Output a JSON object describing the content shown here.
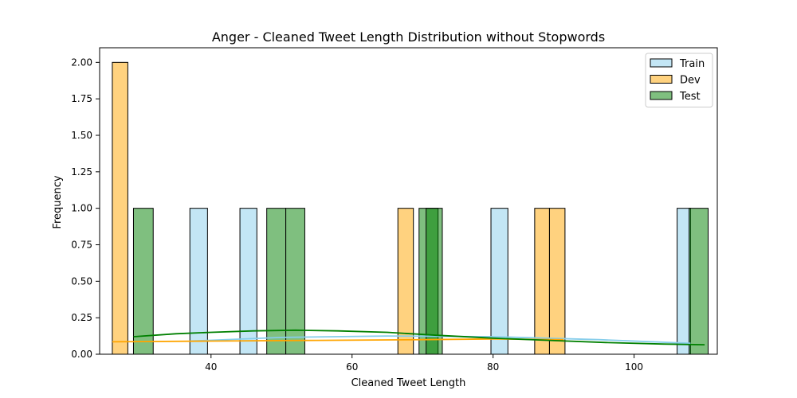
{
  "chart_data": {
    "type": "bar",
    "title": "Anger - Cleaned Tweet Length Distribution without Stopwords",
    "xlabel": "Cleaned Tweet Length",
    "ylabel": "Frequency",
    "xlim": [
      24.2,
      111.8
    ],
    "ylim": [
      0,
      2.1
    ],
    "xticks": [
      40,
      60,
      80,
      100
    ],
    "yticks": [
      0.0,
      0.25,
      0.5,
      0.75,
      1.0,
      1.25,
      1.5,
      1.75,
      2.0
    ],
    "ytick_labels": [
      "0.00",
      "0.25",
      "0.50",
      "0.75",
      "1.00",
      "1.25",
      "1.50",
      "1.75",
      "2.00"
    ],
    "legend_position": "top-right",
    "series": [
      {
        "name": "Train",
        "fill": "#87ceeb",
        "fill_opacity": 0.5,
        "line": "#87ceeb",
        "bars": [
          {
            "x0": 37.0,
            "x1": 39.5,
            "count": 1
          },
          {
            "x0": 44.1,
            "x1": 46.5,
            "count": 1
          },
          {
            "x0": 79.7,
            "x1": 82.1,
            "count": 1
          },
          {
            "x0": 106.1,
            "x1": 108.0,
            "count": 1
          }
        ],
        "kde": [
          [
            37,
            0.09
          ],
          [
            50,
            0.115
          ],
          [
            65,
            0.125
          ],
          [
            80,
            0.12
          ],
          [
            95,
            0.1
          ],
          [
            108,
            0.075
          ]
        ]
      },
      {
        "name": "Dev",
        "fill": "#ffa500",
        "fill_opacity": 0.5,
        "line": "#ffa500",
        "bars": [
          {
            "x0": 26.0,
            "x1": 28.2,
            "count": 2
          },
          {
            "x0": 66.5,
            "x1": 68.7,
            "count": 1
          },
          {
            "x0": 85.9,
            "x1": 88.0,
            "count": 1
          },
          {
            "x0": 88.0,
            "x1": 90.2,
            "count": 1
          }
        ],
        "kde": [
          [
            26,
            0.085
          ],
          [
            40,
            0.09
          ],
          [
            55,
            0.095
          ],
          [
            70,
            0.1
          ],
          [
            80,
            0.105
          ],
          [
            90,
            0.1
          ]
        ]
      },
      {
        "name": "Test",
        "fill": "#008000",
        "fill_opacity": 0.5,
        "line": "#008000",
        "bars": [
          {
            "x0": 29.0,
            "x1": 31.8,
            "count": 1
          },
          {
            "x0": 47.9,
            "x1": 50.6,
            "count": 1
          },
          {
            "x0": 50.6,
            "x1": 53.3,
            "count": 1
          },
          {
            "x0": 69.5,
            "x1": 72.2,
            "count": 1
          },
          {
            "x0": 70.5,
            "x1": 72.8,
            "count": 1
          },
          {
            "x0": 107.8,
            "x1": 110.5,
            "count": 1
          }
        ],
        "kde": [
          [
            29,
            0.12
          ],
          [
            35,
            0.14
          ],
          [
            40,
            0.15
          ],
          [
            46,
            0.16
          ],
          [
            52,
            0.165
          ],
          [
            58,
            0.16
          ],
          [
            65,
            0.15
          ],
          [
            72,
            0.13
          ],
          [
            80,
            0.11
          ],
          [
            88,
            0.095
          ],
          [
            96,
            0.08
          ],
          [
            104,
            0.07
          ],
          [
            110,
            0.065
          ]
        ]
      }
    ]
  }
}
